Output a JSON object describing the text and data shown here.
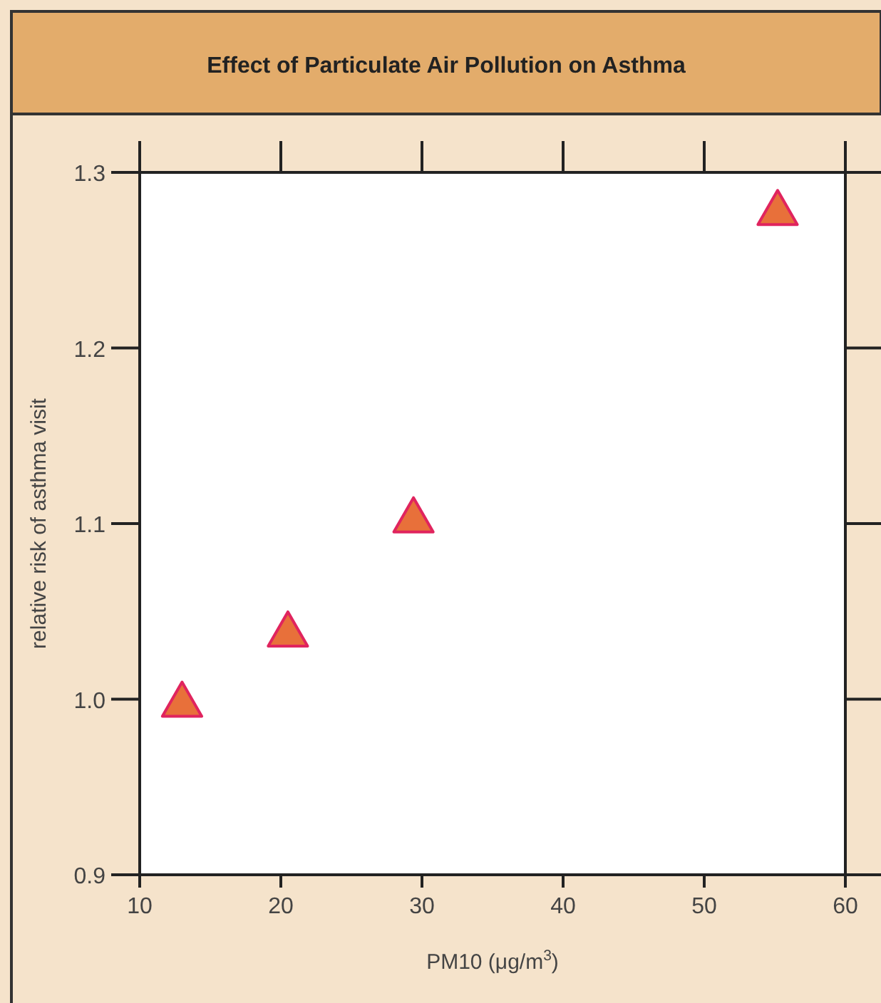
{
  "chart_data": {
    "type": "scatter",
    "title": "Effect of Particulate Air Pollution on Asthma",
    "xlabel": "PM10 (μg/m$^{3}$)",
    "ylabel": "relative risk of asthma visit",
    "x": [
      13,
      20.5,
      29.4,
      55.2
    ],
    "values": [
      1.0,
      1.04,
      1.105,
      1.28
    ],
    "color": "#e8703a",
    "marker": "triangle",
    "xlim": [
      10,
      60
    ],
    "xticks": [
      10,
      20,
      30,
      40,
      50,
      60
    ],
    "ylim": [
      0.9,
      1.3
    ],
    "yticks": [
      {
        "value": 0.9,
        "label": "0.9"
      },
      {
        "value": 1.0,
        "label": "1.0"
      },
      {
        "value": 1.1,
        "label": "1.1"
      },
      {
        "value": 1.2,
        "label": "1.2"
      },
      {
        "value": 1.3,
        "label": "1.3"
      }
    ],
    "grid": false
  }
}
